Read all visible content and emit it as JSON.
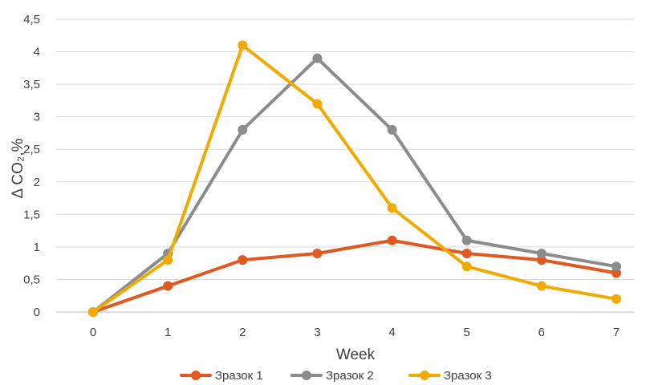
{
  "chart_data": {
    "type": "line",
    "title": "",
    "xlabel": "Week",
    "ylabel": "Δ CO₂,%",
    "x": [
      0,
      1,
      2,
      3,
      4,
      5,
      6,
      7
    ],
    "xtick_labels": [
      "0",
      "1",
      "2",
      "3",
      "4",
      "5",
      "6",
      "7"
    ],
    "ylim": [
      0,
      4.5
    ],
    "ytick_values": [
      0,
      0.5,
      1,
      1.5,
      2,
      2.5,
      3,
      3.5,
      4,
      4.5
    ],
    "ytick_labels": [
      "0",
      "0,5",
      "1",
      "1,5",
      "2",
      "2,5",
      "3",
      "3,5",
      "4",
      "4,5"
    ],
    "grid": true,
    "legend_position": "bottom",
    "series": [
      {
        "name": "Зразок 1",
        "color": "#E2581E",
        "values": [
          0,
          0.4,
          0.8,
          0.9,
          1.1,
          0.9,
          0.8,
          0.6
        ]
      },
      {
        "name": "Зразок 2",
        "color": "#8C8C8C",
        "values": [
          0,
          0.9,
          2.8,
          3.9,
          2.8,
          1.1,
          0.9,
          0.7
        ]
      },
      {
        "name": "Зразок 3",
        "color": "#F2A900",
        "values": [
          0,
          0.8,
          4.1,
          3.2,
          1.6,
          0.7,
          0.4,
          0.2
        ]
      }
    ]
  }
}
